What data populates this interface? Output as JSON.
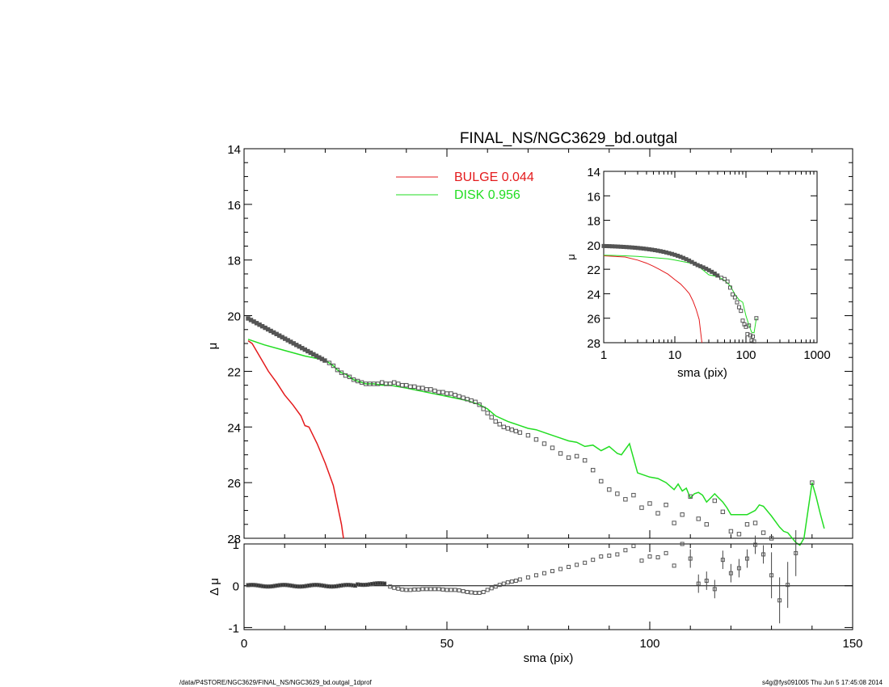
{
  "chart_data": [
    {
      "id": "main",
      "type": "scatter",
      "title": "FINAL_NS/NGC3629_bd.outgal",
      "xlabel": "",
      "ylabel": "μ",
      "xlim": [
        0,
        150
      ],
      "ylim": [
        28,
        14
      ],
      "yticks": [
        14,
        16,
        18,
        20,
        22,
        24,
        26,
        28
      ],
      "legend": [
        {
          "label": "BULGE",
          "fraction": "0.044",
          "color": "#e41a1c"
        },
        {
          "label": "DISK",
          "fraction": "0.956",
          "color": "#22dd22"
        }
      ],
      "series": [
        {
          "name": "BULGE",
          "kind": "line",
          "color": "#e41a1c",
          "x": [
            1,
            2,
            4,
            6,
            8,
            10,
            12,
            14,
            15,
            16,
            18,
            20,
            21,
            22,
            23,
            24,
            24.5
          ],
          "y": [
            20.9,
            21.0,
            21.5,
            22.0,
            22.4,
            22.85,
            23.2,
            23.6,
            23.95,
            24.0,
            24.6,
            25.3,
            25.7,
            26.1,
            26.8,
            27.5,
            28.0
          ]
        },
        {
          "name": "DISK",
          "kind": "line",
          "color": "#22dd22",
          "x": [
            1,
            5,
            10,
            15,
            20,
            21,
            22,
            23,
            24,
            25,
            26,
            27,
            28,
            29,
            30,
            32,
            34,
            36,
            38,
            40,
            45,
            50,
            55,
            58,
            60,
            62,
            65,
            68,
            70,
            72,
            75,
            78,
            80,
            82,
            84,
            86,
            88,
            90,
            92,
            93,
            95,
            97,
            100,
            102,
            104,
            106,
            107,
            108,
            109,
            110,
            111,
            112,
            113,
            114,
            115,
            116,
            117,
            118,
            119,
            120,
            122,
            124,
            126,
            127,
            128,
            130,
            132,
            133,
            134,
            136,
            137,
            138,
            140,
            141,
            142,
            143
          ],
          "y": [
            20.85,
            21.05,
            21.25,
            21.45,
            21.6,
            21.7,
            21.8,
            21.95,
            22.05,
            22.1,
            22.2,
            22.3,
            22.35,
            22.4,
            22.45,
            22.45,
            22.5,
            22.5,
            22.55,
            22.6,
            22.75,
            22.9,
            23.05,
            23.2,
            23.35,
            23.6,
            23.8,
            23.95,
            24.05,
            24.1,
            24.25,
            24.4,
            24.5,
            24.55,
            24.7,
            24.65,
            24.85,
            24.7,
            24.95,
            25.0,
            24.6,
            25.65,
            25.8,
            25.85,
            26.0,
            26.25,
            26.05,
            26.3,
            26.2,
            26.55,
            26.4,
            26.35,
            26.45,
            26.7,
            26.55,
            26.4,
            26.55,
            26.7,
            26.9,
            27.15,
            27.15,
            27.15,
            27.0,
            26.8,
            26.85,
            27.2,
            27.6,
            27.75,
            27.8,
            28.15,
            28.25,
            28.0,
            26.0,
            26.5,
            27.1,
            27.65
          ]
        }
      ]
    },
    {
      "id": "residual",
      "type": "scatter",
      "xlabel": "sma (pix)",
      "ylabel": "Δ μ",
      "xlim": [
        0,
        150
      ],
      "ylim": [
        -1.05,
        1.0
      ],
      "xticks": [
        0,
        50,
        100,
        150
      ],
      "yticks": [
        -1,
        0,
        1
      ]
    },
    {
      "id": "inset",
      "type": "line",
      "xlabel": "sma (pix)",
      "ylabel": "μ",
      "xscale": "log",
      "xlim": [
        1,
        1000
      ],
      "ylim": [
        28,
        14
      ],
      "xticks": [
        1,
        10,
        100,
        1000
      ],
      "yticks": [
        14,
        16,
        18,
        20,
        22,
        24,
        26,
        28
      ],
      "series": [
        {
          "name": "BULGE",
          "color": "#e41a1c",
          "x": [
            1,
            2,
            3,
            4,
            5,
            6,
            8,
            10,
            12,
            14,
            16,
            18,
            20,
            22,
            24
          ],
          "y": [
            20.9,
            21.0,
            21.25,
            21.5,
            21.75,
            22.0,
            22.4,
            22.85,
            23.2,
            23.6,
            24.0,
            24.6,
            25.3,
            26.1,
            28.0
          ]
        },
        {
          "name": "DISK",
          "color": "#22dd22",
          "x": [
            1,
            2,
            3,
            5,
            8,
            10,
            15,
            20,
            30,
            40,
            50,
            60,
            70,
            80,
            90,
            100,
            110,
            120,
            130,
            140
          ],
          "y": [
            20.85,
            20.9,
            20.95,
            21.05,
            21.15,
            21.25,
            21.45,
            21.6,
            22.45,
            22.6,
            22.9,
            23.35,
            24.05,
            24.5,
            24.7,
            25.8,
            26.55,
            27.15,
            27.2,
            26.0
          ]
        }
      ]
    }
  ],
  "footer": {
    "left": "/data/P4STORE/NGC3629/FINAL_NS/NGC3629_bd.outgal_1dprof",
    "right": "s4g@fys091005  Thu Jun  5 17:45:08 2014"
  }
}
